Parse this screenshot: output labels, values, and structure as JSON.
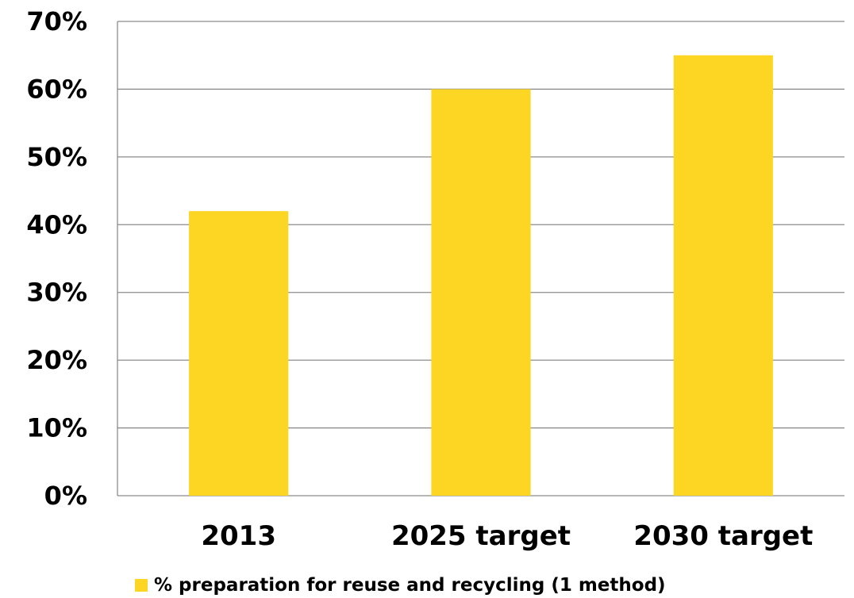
{
  "chart_data": {
    "type": "bar",
    "categories": [
      "2013",
      "2025 target",
      "2030 target"
    ],
    "series": [
      {
        "name": "% preparation for reuse and recycling (1 method)",
        "values": [
          42,
          60,
          65
        ]
      }
    ],
    "y_ticks": [
      "0%",
      "10%",
      "20%",
      "30%",
      "40%",
      "50%",
      "60%",
      "70%"
    ],
    "ylim": [
      0,
      70
    ],
    "y_unit": "%",
    "grid": true,
    "legend": "bottom",
    "colors": {
      "bar": "#FDD523",
      "grid": "#8C8C8C",
      "axis": "#8C8C8C",
      "text": "#000000"
    }
  }
}
